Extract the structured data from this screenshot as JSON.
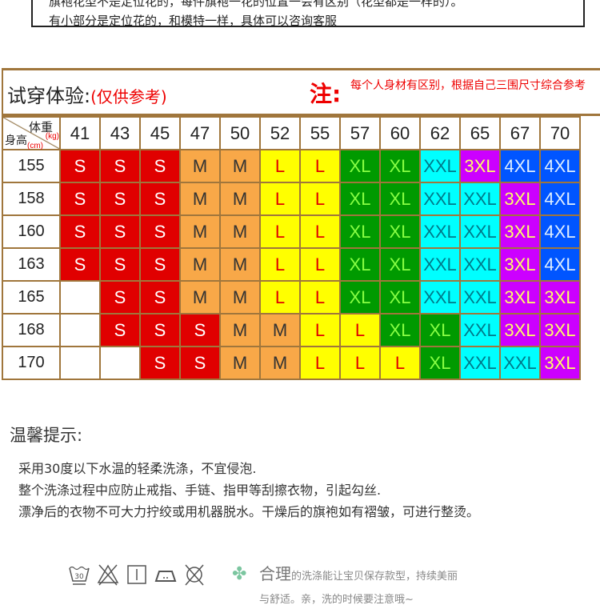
{
  "notice": {
    "line1": "旗袍花型不是定位花的，每件旗袍一花的位置一会有区别（花型都是一样的）。",
    "line2": "有小部分是定位花的，和模特一样，具体可以咨询客服"
  },
  "size_table": {
    "title": "试穿体验:",
    "title_note": "(仅供参考)",
    "note_label": "注:",
    "note_text": "每个人身材有区别，根据自己三围尺寸综合参考",
    "weight_label": "体重",
    "weight_unit": "(kg)",
    "height_label": "身高",
    "height_unit": "(cm)",
    "weights": [
      "41",
      "43",
      "45",
      "47",
      "50",
      "52",
      "55",
      "57",
      "60",
      "62",
      "65",
      "67",
      "70"
    ],
    "rows": [
      {
        "height": "155",
        "sizes": [
          "S",
          "S",
          "S",
          "M",
          "M",
          "L",
          "L",
          "XL",
          "XL",
          "XXL",
          "3XL",
          "4XL",
          "4XL"
        ]
      },
      {
        "height": "158",
        "sizes": [
          "S",
          "S",
          "S",
          "M",
          "M",
          "L",
          "L",
          "XL",
          "XL",
          "XXL",
          "XXL",
          "3XL",
          "4XL"
        ]
      },
      {
        "height": "160",
        "sizes": [
          "S",
          "S",
          "S",
          "M",
          "M",
          "L",
          "L",
          "XL",
          "XL",
          "XXL",
          "XXL",
          "3XL",
          "4XL"
        ]
      },
      {
        "height": "163",
        "sizes": [
          "S",
          "S",
          "S",
          "M",
          "M",
          "L",
          "L",
          "XL",
          "XL",
          "XXL",
          "XXL",
          "3XL",
          "4XL"
        ]
      },
      {
        "height": "165",
        "sizes": [
          "",
          "S",
          "S",
          "M",
          "M",
          "L",
          "L",
          "XL",
          "XL",
          "XXL",
          "XXL",
          "3XL",
          "3XL"
        ]
      },
      {
        "height": "168",
        "sizes": [
          "",
          "S",
          "S",
          "S",
          "M",
          "M",
          "L",
          "L",
          "XL",
          "XL",
          "XXL",
          "3XL",
          "3XL"
        ]
      },
      {
        "height": "170",
        "sizes": [
          "",
          "",
          "S",
          "S",
          "M",
          "M",
          "L",
          "L",
          "L",
          "XL",
          "XXL",
          "XXL",
          "3XL"
        ]
      }
    ],
    "size_colors": {
      "S": [
        "#e00000",
        "#ffffff"
      ],
      "M": [
        "#f8a848",
        "#333333"
      ],
      "L": [
        "#ffff00",
        "#e00000"
      ],
      "XL": [
        "#009a00",
        "#88ff44"
      ],
      "XXL": [
        "#00ffff",
        "#007a8a"
      ],
      "3XL": [
        "#cc00ff",
        "#ffff66"
      ],
      "4XL": [
        "#0055ff",
        "#ddeeff"
      ]
    }
  },
  "tips": {
    "title": "温馨提示:",
    "lines": [
      "采用30度以下水温的轻柔洗涤，不宜侵泡.",
      "整个洗涤过程中应防止戒指、手链、指甲等刮擦衣物，引起勾丝.",
      "漂净后的衣物不可大力拧绞或用机器脱水。干燥后的旗袍如有褶皱，可进行整烫。"
    ]
  },
  "care": {
    "wash_temp": "30",
    "icons": [
      "wash-30-icon",
      "no-bleach-icon",
      "line-dry-icon",
      "iron-low-icon",
      "no-tumble-dry-icon"
    ],
    "slogan_big": "合理",
    "slogan_rest": "的洗涤能让宝贝保存款型，持续美丽",
    "slogan_line2": "与舒适。亲，洗的时候要注意哦~"
  }
}
